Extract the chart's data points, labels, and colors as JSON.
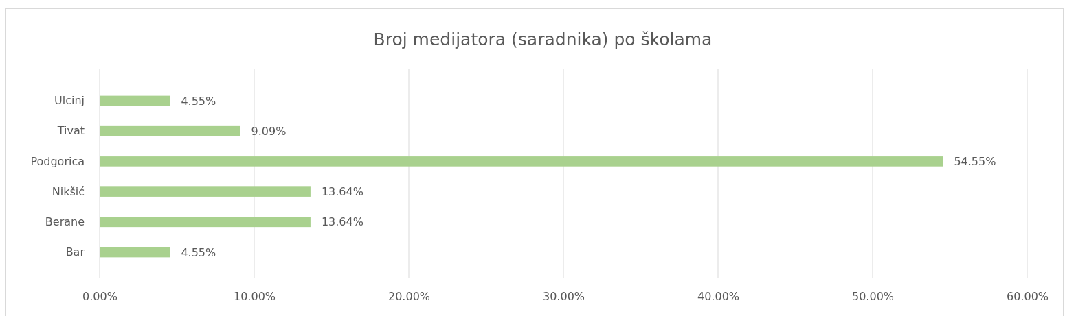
{
  "chart_data": {
    "type": "bar",
    "orientation": "horizontal",
    "title": "Broj medijatora (saradnika) po školama",
    "categories": [
      "Ulcinj",
      "Tivat",
      "Podgorica",
      "Nikšić",
      "Berane",
      "Bar"
    ],
    "values": [
      4.55,
      9.09,
      54.55,
      13.64,
      13.64,
      4.55
    ],
    "value_labels": [
      "4.55%",
      "9.09%",
      "54.55%",
      "13.64%",
      "13.64%",
      "4.55%"
    ],
    "color": "#a9d18e",
    "xlim": [
      0,
      60
    ],
    "xticks": [
      {
        "value": 0,
        "label": "0.00%"
      },
      {
        "value": 10,
        "label": "10.00%"
      },
      {
        "value": 20,
        "label": "20.00%"
      },
      {
        "value": 30,
        "label": "30.00%"
      },
      {
        "value": 40,
        "label": "40.00%"
      },
      {
        "value": 50,
        "label": "50.00%"
      },
      {
        "value": 60,
        "label": "60.00%"
      }
    ],
    "grid": "x"
  }
}
